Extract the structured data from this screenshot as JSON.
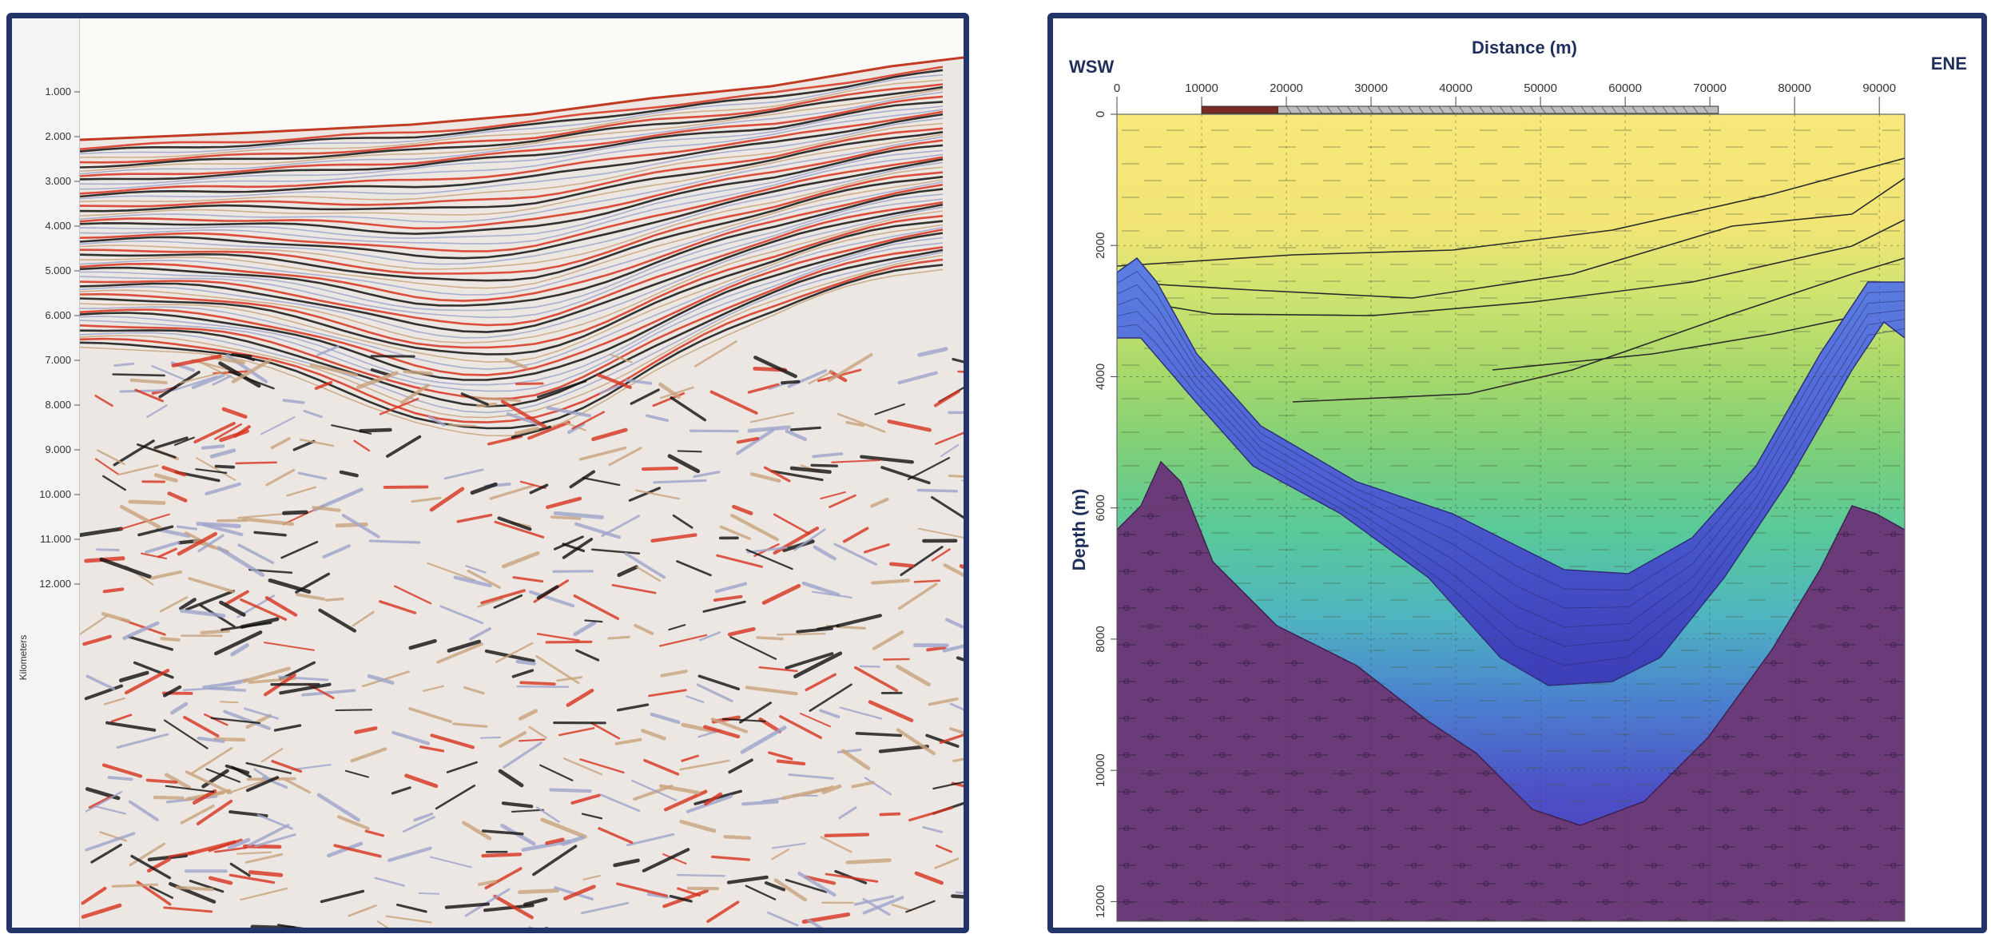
{
  "left_panel": {
    "axis_label": "Kilometers",
    "y_ticks": [
      "1.000",
      "2.000",
      "3.000",
      "4.000",
      "5.000",
      "6.000",
      "7.000",
      "8.000",
      "9.000",
      "10.000",
      "11.000",
      "12.000"
    ],
    "border_color": "#23346b",
    "reflector_colors": [
      "#d8321e",
      "#111111",
      "#c9a47e",
      "#9ea4cc"
    ]
  },
  "right_panel": {
    "title": "Distance (m)",
    "left_label": "WSW",
    "right_label": "ENE",
    "y_label": "Depth (m)",
    "x_ticks": [
      "0",
      "10000",
      "20000",
      "30000",
      "40000",
      "50000",
      "60000",
      "70000",
      "80000",
      "90000"
    ],
    "y_ticks": [
      "0",
      "2000",
      "4000",
      "6000",
      "8000",
      "10000",
      "12000"
    ],
    "layer_colors": {
      "top": "#f5e67a",
      "middle": "#b8dc6e",
      "lower": "#54c9a0",
      "deep": "#4c62c8",
      "salt": "#4a47c0",
      "basement": "#6a3a78"
    }
  }
}
